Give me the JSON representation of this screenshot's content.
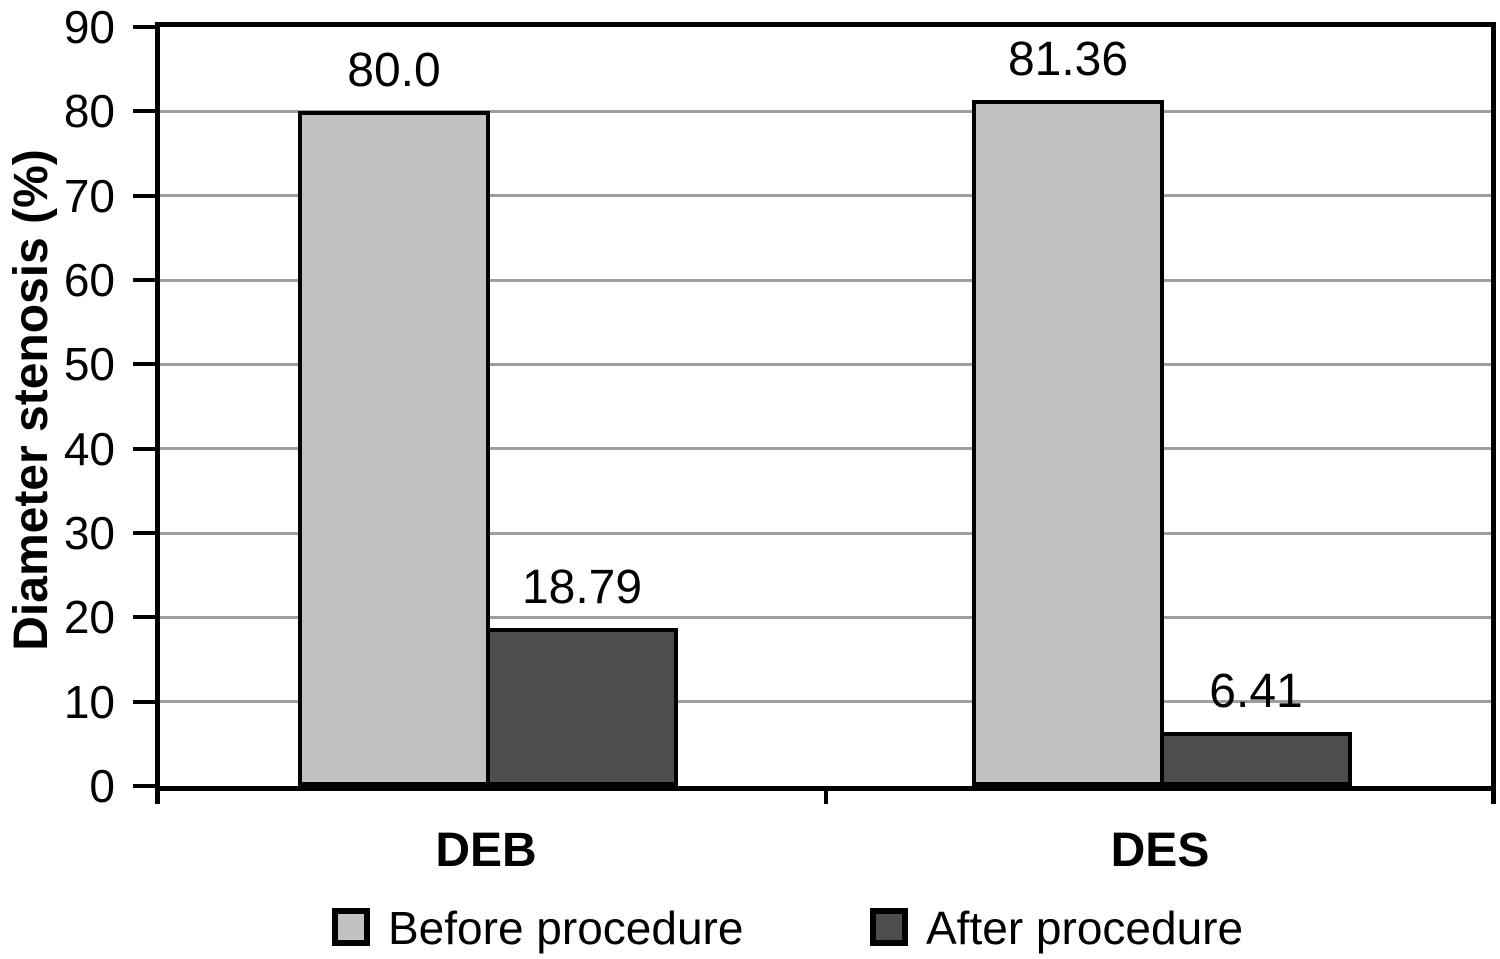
{
  "chart_data": {
    "type": "bar",
    "title": "",
    "xlabel": "",
    "ylabel": "Diameter stenosis (%)",
    "categories": [
      "DEB",
      "DES"
    ],
    "series": [
      {
        "name": "Before procedure",
        "values": [
          80.0,
          81.36
        ],
        "data_labels": [
          "80.0",
          "81.36"
        ],
        "color": "#c1c1c1"
      },
      {
        "name": "After procedure",
        "values": [
          18.79,
          6.41
        ],
        "data_labels": [
          "18.79",
          "6.41"
        ],
        "color": "#4d4d4d"
      }
    ],
    "ylim": [
      0,
      90
    ],
    "ytick_step": 10,
    "ytick_labels": [
      "0",
      "10",
      "20",
      "30",
      "40",
      "50",
      "60",
      "70",
      "80",
      "90"
    ],
    "grid": true,
    "gridline_color": "#9e9e9e",
    "axis_color": "#000000",
    "bar_border_color": "#000000",
    "legend_position": "bottom"
  },
  "legend": {
    "items": [
      {
        "label": "Before procedure",
        "color": "#c1c1c1"
      },
      {
        "label": "After procedure",
        "color": "#4d4d4d"
      }
    ]
  }
}
